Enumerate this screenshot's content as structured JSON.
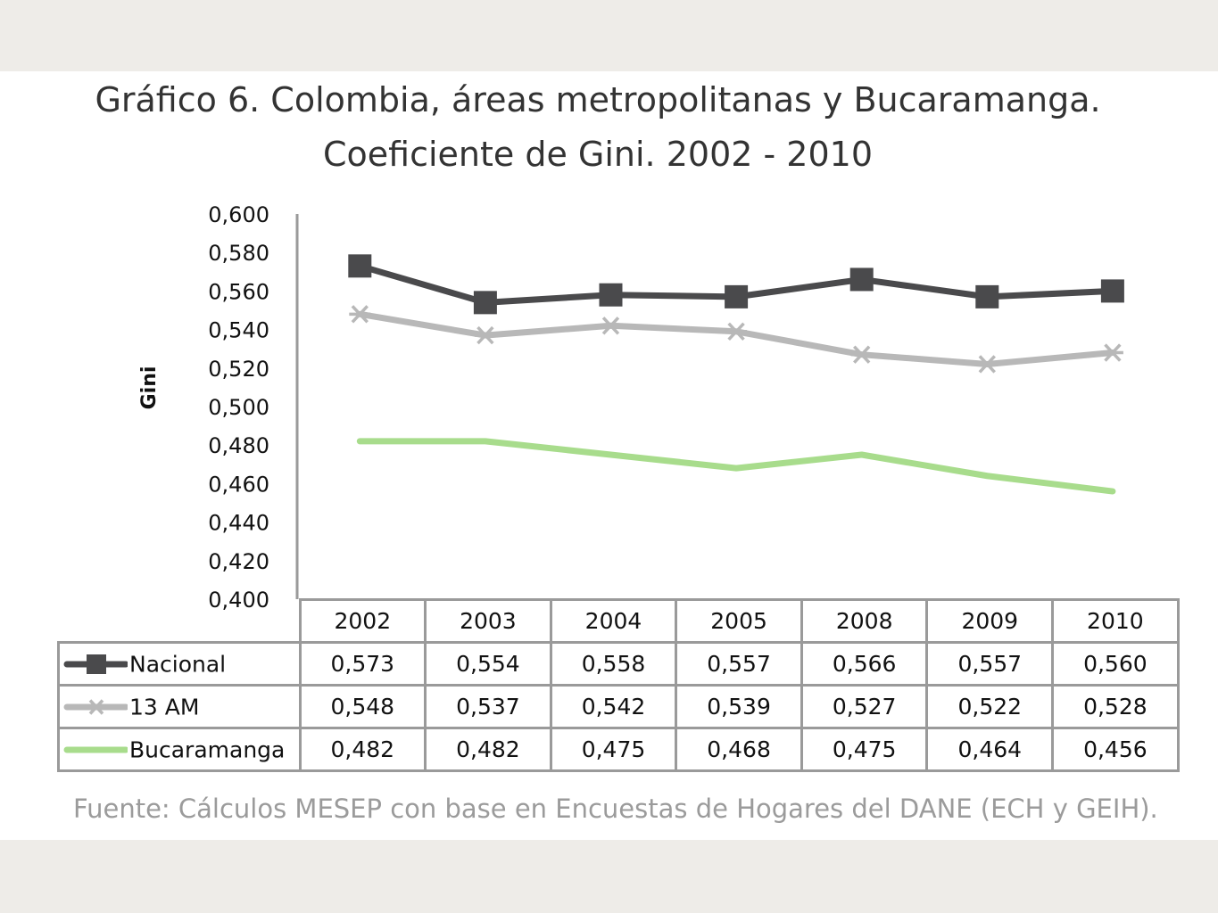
{
  "title_line1": "Gráfico 6. Colombia, áreas metropolitanas y Bucaramanga.",
  "title_line2": "Coeficiente de Gini. 2002 - 2010",
  "source": "Fuente: Cálculos MESEP con base en Encuestas de Hogares del DANE (ECH y GEIH).",
  "chart_data": {
    "type": "line",
    "title": "Gráfico 6. Colombia, áreas metropolitanas y Bucaramanga. Coeficiente de Gini. 2002 - 2010",
    "ylabel": "Gini",
    "xlabel": "",
    "ylim": [
      0.4,
      0.6
    ],
    "ytick_labels": [
      "0,600",
      "0,580",
      "0,560",
      "0,540",
      "0,520",
      "0,500",
      "0,480",
      "0,460",
      "0,440",
      "0,420",
      "0,400"
    ],
    "categories": [
      "2002",
      "2003",
      "2004",
      "2005",
      "2008",
      "2009",
      "2010"
    ],
    "grid": false,
    "legend": "data-table",
    "series": [
      {
        "name": "Nacional",
        "color": "#4a4a4c",
        "marker": "square",
        "values": [
          0.573,
          0.554,
          0.558,
          0.557,
          0.566,
          0.557,
          0.56
        ],
        "labels": [
          "0,573",
          "0,554",
          "0,558",
          "0,557",
          "0,566",
          "0,557",
          "0,560"
        ]
      },
      {
        "name": "13 AM",
        "color": "#b8b8b8",
        "marker": "star",
        "values": [
          0.548,
          0.537,
          0.542,
          0.539,
          0.527,
          0.522,
          0.528
        ],
        "labels": [
          "0,548",
          "0,537",
          "0,542",
          "0,539",
          "0,527",
          "0,522",
          "0,528"
        ]
      },
      {
        "name": "Bucaramanga",
        "color": "#a8dc8c",
        "marker": "none",
        "values": [
          0.482,
          0.482,
          0.475,
          0.468,
          0.475,
          0.464,
          0.456
        ],
        "labels": [
          "0,482",
          "0,482",
          "0,475",
          "0,468",
          "0,475",
          "0,464",
          "0,456"
        ]
      }
    ]
  }
}
